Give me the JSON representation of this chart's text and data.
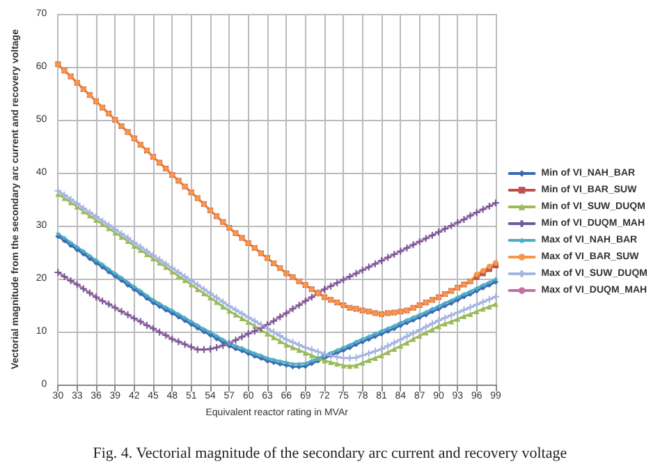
{
  "chart_data": {
    "type": "line",
    "xlabel": "Equivalent reactor rating in MVAr",
    "ylabel": "Vectorial magnitude from the secondary arc current and recovery voltage",
    "categories": [
      "30",
      null,
      null,
      "33",
      null,
      null,
      "36",
      null,
      null,
      "39",
      null,
      null,
      "42",
      null,
      null,
      "45",
      null,
      null,
      "48",
      null,
      null,
      "51",
      null,
      null,
      "54",
      null,
      null,
      "57",
      null,
      null,
      "60",
      null,
      null,
      "63",
      null,
      null,
      "66",
      null,
      null,
      "69",
      null,
      null,
      "72",
      null,
      null,
      "75",
      null,
      null,
      "78",
      null,
      null,
      "81",
      null,
      null,
      "84",
      null,
      null,
      "87",
      null,
      null,
      "90",
      null,
      null,
      "93",
      null,
      null,
      "96",
      null,
      null,
      "99"
    ],
    "ylim": [
      0,
      70
    ],
    "yticks": [
      0,
      10,
      20,
      30,
      40,
      50,
      60,
      70
    ],
    "grid": true,
    "legend": "right",
    "annotations": [
      "Fig. 4. Vectorial magnitude of the secondary arc current and recovery voltage"
    ],
    "series": [
      {
        "name": "Min of VI_NAH_BAR",
        "color": "#3a6ab0",
        "marker": "diamond",
        "values": [
          28.0,
          27.2,
          26.3,
          25.5,
          24.7,
          23.8,
          23.0,
          22.2,
          21.3,
          20.5,
          19.7,
          18.8,
          18.0,
          17.2,
          16.3,
          15.5,
          14.8,
          14.1,
          13.5,
          12.8,
          12.1,
          11.4,
          10.7,
          10.0,
          9.4,
          8.7,
          8.0,
          7.3,
          6.8,
          6.4,
          5.9,
          5.4,
          5.0,
          4.5,
          4.2,
          3.9,
          3.7,
          3.4,
          3.4,
          3.5,
          4.0,
          4.5,
          5.0,
          5.5,
          6.0,
          6.5,
          7.0,
          7.6,
          8.1,
          8.6,
          9.1,
          9.6,
          10.1,
          10.6,
          11.2,
          11.7,
          12.2,
          12.7,
          13.2,
          13.8,
          14.3,
          14.9,
          15.4,
          16.0,
          16.6,
          17.1,
          17.7,
          18.3,
          18.8,
          19.4
        ]
      },
      {
        "name": "Min of VI_BAR_SUW",
        "color": "#c0504d",
        "marker": "square",
        "values": [
          60.5,
          59.3,
          58.2,
          57.0,
          55.8,
          54.7,
          53.5,
          52.3,
          51.2,
          50.0,
          48.8,
          47.7,
          46.5,
          45.3,
          44.2,
          43.0,
          41.9,
          40.8,
          39.6,
          38.5,
          37.4,
          36.3,
          35.2,
          34.1,
          32.9,
          31.8,
          30.7,
          29.6,
          28.6,
          27.7,
          26.7,
          25.8,
          24.8,
          23.9,
          22.9,
          22.0,
          21.0,
          20.3,
          19.5,
          18.8,
          18.0,
          17.3,
          16.5,
          16.0,
          15.5,
          15.0,
          14.5,
          14.3,
          14.0,
          13.8,
          13.5,
          13.3,
          13.5,
          13.6,
          13.8,
          14.0,
          14.5,
          15.0,
          15.5,
          16.0,
          16.5,
          17.1,
          17.7,
          18.3,
          18.9,
          19.5,
          20.3,
          21.0,
          21.8,
          22.5
        ]
      },
      {
        "name": "Min of VI_SUW_DUQM",
        "color": "#9bbb59",
        "marker": "triangle",
        "values": [
          36.0,
          35.2,
          34.4,
          33.6,
          32.7,
          31.9,
          31.1,
          30.3,
          29.5,
          28.7,
          27.9,
          27.1,
          26.2,
          25.4,
          24.6,
          23.8,
          23.0,
          22.2,
          21.3,
          20.5,
          19.7,
          18.9,
          18.0,
          17.2,
          16.4,
          15.6,
          14.7,
          13.9,
          13.2,
          12.5,
          11.8,
          11.1,
          10.3,
          9.6,
          8.9,
          8.2,
          7.5,
          7.0,
          6.5,
          6.0,
          5.5,
          5.0,
          4.5,
          4.2,
          3.9,
          3.6,
          3.5,
          3.6,
          4.1,
          4.6,
          5.0,
          5.5,
          6.1,
          6.7,
          7.3,
          7.9,
          8.6,
          9.2,
          9.8,
          10.4,
          11.0,
          11.5,
          11.9,
          12.4,
          12.9,
          13.3,
          13.8,
          14.3,
          14.7,
          15.2
        ]
      },
      {
        "name": "Min of VI_DUQM_MAH",
        "color": "#6c5a9c",
        "marker": "cross",
        "values": [
          21.2,
          20.4,
          19.6,
          18.9,
          18.1,
          17.3,
          16.5,
          15.8,
          15.2,
          14.5,
          13.8,
          13.2,
          12.5,
          11.9,
          11.2,
          10.6,
          9.9,
          9.3,
          8.6,
          8.1,
          7.6,
          7.1,
          6.6,
          6.6,
          6.7,
          7.0,
          7.4,
          7.8,
          8.4,
          9.0,
          9.6,
          10.1,
          10.7,
          11.3,
          12.0,
          12.8,
          13.5,
          14.3,
          15.0,
          15.8,
          16.5,
          17.3,
          18.0,
          18.6,
          19.2,
          19.8,
          20.4,
          21.0,
          21.6,
          22.2,
          22.8,
          23.4,
          24.0,
          24.6,
          25.2,
          25.8,
          26.4,
          27.0,
          27.6,
          28.2,
          28.8,
          29.4,
          30.0,
          30.6,
          31.2,
          31.9,
          32.5,
          33.1,
          33.7,
          34.3
        ]
      },
      {
        "name": "Max of VI_NAH_BAR",
        "color": "#4bacc6",
        "marker": "star",
        "values": [
          28.5,
          27.7,
          26.8,
          26.0,
          25.2,
          24.3,
          23.5,
          22.7,
          21.8,
          21.0,
          20.2,
          19.3,
          18.5,
          17.7,
          16.8,
          16.0,
          15.3,
          14.6,
          14.0,
          13.3,
          12.6,
          11.9,
          11.2,
          10.5,
          9.9,
          9.2,
          8.5,
          7.8,
          7.3,
          6.9,
          6.4,
          5.9,
          5.5,
          5.0,
          4.7,
          4.4,
          4.2,
          3.9,
          3.9,
          4.0,
          4.5,
          5.0,
          5.5,
          6.0,
          6.5,
          7.0,
          7.5,
          8.1,
          8.6,
          9.1,
          9.6,
          10.1,
          10.6,
          11.1,
          11.7,
          12.2,
          12.7,
          13.2,
          13.7,
          14.3,
          14.8,
          15.4,
          15.9,
          16.5,
          17.1,
          17.6,
          18.2,
          18.8,
          19.3,
          19.9
        ]
      },
      {
        "name": "Max of VI_BAR_SUW",
        "color": "#f79646",
        "marker": "circle",
        "values": [
          60.5,
          59.3,
          58.2,
          57.0,
          55.8,
          54.7,
          53.5,
          52.3,
          51.2,
          50.0,
          48.8,
          47.7,
          46.5,
          45.3,
          44.2,
          43.0,
          41.9,
          40.8,
          39.6,
          38.5,
          37.4,
          36.3,
          35.2,
          34.1,
          32.9,
          31.8,
          30.7,
          29.6,
          28.6,
          27.7,
          26.7,
          25.8,
          24.8,
          23.9,
          22.9,
          22.0,
          21.0,
          20.3,
          19.5,
          18.8,
          18.0,
          17.3,
          16.5,
          16.0,
          15.5,
          15.0,
          14.5,
          14.3,
          14.0,
          13.8,
          13.5,
          13.3,
          13.5,
          13.6,
          13.8,
          14.0,
          14.5,
          15.0,
          15.5,
          16.0,
          16.5,
          17.1,
          17.7,
          18.3,
          18.9,
          19.5,
          20.8,
          21.5,
          22.3,
          23.0
        ]
      },
      {
        "name": "Max of VI_SUW_DUQM",
        "color": "#a5b5e0",
        "marker": "cross",
        "values": [
          36.6,
          35.8,
          35.0,
          34.2,
          33.3,
          32.5,
          31.7,
          30.9,
          30.1,
          29.3,
          28.5,
          27.7,
          26.8,
          26.0,
          25.2,
          24.4,
          23.6,
          22.8,
          22.0,
          21.2,
          20.4,
          19.6,
          18.8,
          18.0,
          17.2,
          16.4,
          15.6,
          14.8,
          14.1,
          13.4,
          12.7,
          12.0,
          11.3,
          10.6,
          9.9,
          9.2,
          8.5,
          8.0,
          7.5,
          7.0,
          6.6,
          6.2,
          5.8,
          5.5,
          5.2,
          5.0,
          5.0,
          5.1,
          5.5,
          5.9,
          6.3,
          6.7,
          7.3,
          7.9,
          8.5,
          9.1,
          9.7,
          10.3,
          10.9,
          11.5,
          12.1,
          12.6,
          13.1,
          13.6,
          14.1,
          14.6,
          15.1,
          15.6,
          16.1,
          16.6
        ]
      },
      {
        "name": "Max of VI_DUQM_MAH",
        "color": "#c46fa3",
        "marker": "none",
        "values": [
          21.2,
          20.4,
          19.6,
          18.9,
          18.1,
          17.3,
          16.5,
          15.8,
          15.2,
          14.5,
          13.8,
          13.2,
          12.5,
          11.9,
          11.2,
          10.6,
          9.9,
          9.3,
          8.6,
          8.1,
          7.6,
          7.1,
          6.6,
          6.6,
          6.7,
          7.0,
          7.4,
          7.8,
          8.4,
          9.0,
          9.6,
          10.1,
          10.7,
          11.3,
          12.0,
          12.8,
          13.5,
          14.3,
          15.0,
          15.8,
          16.5,
          17.3,
          18.0,
          18.6,
          19.2,
          19.8,
          20.4,
          21.0,
          21.6,
          22.2,
          22.8,
          23.4,
          24.0,
          24.6,
          25.2,
          25.8,
          26.4,
          27.0,
          27.6,
          28.2,
          28.8,
          29.4,
          30.0,
          30.6,
          31.2,
          31.9,
          32.5,
          33.1,
          33.7,
          34.3
        ]
      }
    ]
  }
}
